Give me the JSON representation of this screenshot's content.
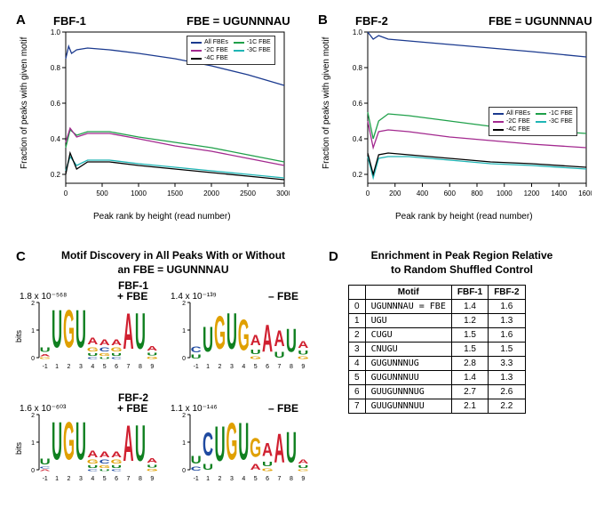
{
  "fbe_string": "FBE = UGUNNNAU",
  "panelA": {
    "label": "A",
    "title": "FBF-1",
    "x_label": "Peak rank by height (read number)",
    "y_label": "Fraction of peaks with given motif",
    "x_ticks": [
      0,
      500,
      1000,
      1500,
      2000,
      2500,
      3000
    ],
    "y_ticks": [
      "0.2",
      "0.4",
      "0.6",
      "0.8",
      "1.0"
    ],
    "xlim": [
      0,
      3000
    ],
    "ylim": [
      0.15,
      1.0
    ],
    "legend": [
      {
        "label": "All FBEs",
        "color": "#1b3a8f"
      },
      {
        "label": "-1C FBE",
        "color": "#1fa04a"
      },
      {
        "label": "-2C FBE",
        "color": "#a3298f"
      },
      {
        "label": "-3C FBE",
        "color": "#1fb5b5"
      },
      {
        "label": "-4C FBE",
        "color": "#000000"
      }
    ],
    "series": {
      "all": [
        [
          0,
          0.85
        ],
        [
          40,
          0.92
        ],
        [
          80,
          0.88
        ],
        [
          150,
          0.9
        ],
        [
          300,
          0.91
        ],
        [
          600,
          0.9
        ],
        [
          1000,
          0.88
        ],
        [
          1500,
          0.85
        ],
        [
          2000,
          0.81
        ],
        [
          2500,
          0.76
        ],
        [
          3000,
          0.7
        ]
      ],
      "m1c": [
        [
          0,
          0.35
        ],
        [
          60,
          0.45
        ],
        [
          150,
          0.42
        ],
        [
          300,
          0.44
        ],
        [
          600,
          0.44
        ],
        [
          1000,
          0.41
        ],
        [
          1500,
          0.38
        ],
        [
          2000,
          0.35
        ],
        [
          2500,
          0.31
        ],
        [
          3000,
          0.27
        ]
      ],
      "m2c": [
        [
          0,
          0.38
        ],
        [
          60,
          0.46
        ],
        [
          150,
          0.41
        ],
        [
          300,
          0.43
        ],
        [
          600,
          0.43
        ],
        [
          1000,
          0.4
        ],
        [
          1500,
          0.36
        ],
        [
          2000,
          0.33
        ],
        [
          2500,
          0.29
        ],
        [
          3000,
          0.25
        ]
      ],
      "m3c": [
        [
          0,
          0.22
        ],
        [
          60,
          0.3
        ],
        [
          150,
          0.25
        ],
        [
          300,
          0.28
        ],
        [
          600,
          0.28
        ],
        [
          1000,
          0.26
        ],
        [
          1500,
          0.24
        ],
        [
          2000,
          0.22
        ],
        [
          2500,
          0.2
        ],
        [
          3000,
          0.18
        ]
      ],
      "m4c": [
        [
          0,
          0.2
        ],
        [
          60,
          0.32
        ],
        [
          150,
          0.23
        ],
        [
          300,
          0.27
        ],
        [
          600,
          0.27
        ],
        [
          1000,
          0.25
        ],
        [
          1500,
          0.23
        ],
        [
          2000,
          0.21
        ],
        [
          2500,
          0.19
        ],
        [
          3000,
          0.17
        ]
      ]
    }
  },
  "panelB": {
    "label": "B",
    "title": "FBF-2",
    "x_label": "Peak rank by height (read number)",
    "y_label": "Fraction of peaks with given motif",
    "x_ticks": [
      0,
      200,
      400,
      600,
      800,
      1000,
      1200,
      1400,
      1600
    ],
    "y_ticks": [
      "0.2",
      "0.4",
      "0.6",
      "0.8",
      "1.0"
    ],
    "xlim": [
      0,
      1600
    ],
    "ylim": [
      0.15,
      1.0
    ],
    "legend": [
      {
        "label": "All FBEs",
        "color": "#1b3a8f"
      },
      {
        "label": "-1C FBE",
        "color": "#1fa04a"
      },
      {
        "label": "-2C FBE",
        "color": "#a3298f"
      },
      {
        "label": "-3C FBE",
        "color": "#1fb5b5"
      },
      {
        "label": "-4C FBE",
        "color": "#000000"
      }
    ],
    "series": {
      "all": [
        [
          0,
          1.0
        ],
        [
          40,
          0.96
        ],
        [
          80,
          0.98
        ],
        [
          150,
          0.96
        ],
        [
          300,
          0.95
        ],
        [
          600,
          0.93
        ],
        [
          900,
          0.91
        ],
        [
          1200,
          0.89
        ],
        [
          1600,
          0.86
        ]
      ],
      "m1c": [
        [
          0,
          0.55
        ],
        [
          40,
          0.4
        ],
        [
          80,
          0.5
        ],
        [
          150,
          0.54
        ],
        [
          300,
          0.53
        ],
        [
          600,
          0.5
        ],
        [
          900,
          0.47
        ],
        [
          1200,
          0.45
        ],
        [
          1600,
          0.43
        ]
      ],
      "m2c": [
        [
          0,
          0.5
        ],
        [
          40,
          0.35
        ],
        [
          80,
          0.44
        ],
        [
          150,
          0.45
        ],
        [
          300,
          0.44
        ],
        [
          600,
          0.41
        ],
        [
          900,
          0.39
        ],
        [
          1200,
          0.37
        ],
        [
          1600,
          0.35
        ]
      ],
      "m3c": [
        [
          0,
          0.3
        ],
        [
          40,
          0.18
        ],
        [
          80,
          0.29
        ],
        [
          150,
          0.3
        ],
        [
          300,
          0.3
        ],
        [
          600,
          0.28
        ],
        [
          900,
          0.26
        ],
        [
          1200,
          0.25
        ],
        [
          1600,
          0.23
        ]
      ],
      "m4c": [
        [
          0,
          0.32
        ],
        [
          40,
          0.2
        ],
        [
          80,
          0.31
        ],
        [
          150,
          0.32
        ],
        [
          300,
          0.31
        ],
        [
          600,
          0.29
        ],
        [
          900,
          0.27
        ],
        [
          1200,
          0.26
        ],
        [
          1600,
          0.24
        ]
      ]
    }
  },
  "panelC": {
    "label": "C",
    "title_line1": "Motif Discovery in All Peaks With or Without",
    "title_line2": "an FBE = UGUNNNAU",
    "sub_fbf1": "FBF-1",
    "sub_fbf2": "FBF-2",
    "bits_label": "bits",
    "y_ticks": [
      "0",
      "1",
      "2"
    ],
    "colors": {
      "A": "#d02030",
      "C": "#1f4aa0",
      "G": "#e0a000",
      "U": "#108020"
    },
    "logos": {
      "fbf1_plus": {
        "evalue": "1.8 x 10⁻⁵⁶⁸",
        "tag": "+ FBE",
        "cols": [
          [
            [
              "U",
              0.25
            ],
            [
              "A",
              0.12
            ],
            [
              "G",
              0.1
            ]
          ],
          [
            [
              "U",
              1.95
            ]
          ],
          [
            [
              "G",
              1.95
            ]
          ],
          [
            [
              "U",
              1.95
            ]
          ],
          [
            [
              "A",
              0.35
            ],
            [
              "G",
              0.22
            ],
            [
              "U",
              0.15
            ],
            [
              "C",
              0.1
            ]
          ],
          [
            [
              "A",
              0.3
            ],
            [
              "C",
              0.2
            ],
            [
              "G",
              0.15
            ],
            [
              "U",
              0.1
            ]
          ],
          [
            [
              "A",
              0.3
            ],
            [
              "G",
              0.2
            ],
            [
              "U",
              0.15
            ],
            [
              "C",
              0.1
            ]
          ],
          [
            [
              "A",
              1.85
            ]
          ],
          [
            [
              "U",
              1.85
            ]
          ],
          [
            [
              "A",
              0.25
            ],
            [
              "U",
              0.15
            ],
            [
              "G",
              0.12
            ]
          ]
        ]
      },
      "fbf1_minus": {
        "evalue": "1.4 x 10⁻¹³⁹",
        "tag": "– FBE",
        "cols": [
          [
            [
              "C",
              0.3
            ],
            [
              "U",
              0.2
            ]
          ],
          [
            [
              "U",
              1.3
            ]
          ],
          [
            [
              "G",
              1.7
            ]
          ],
          [
            [
              "U",
              1.85
            ]
          ],
          [
            [
              "G",
              1.6
            ]
          ],
          [
            [
              "A",
              0.55
            ],
            [
              "U",
              0.25
            ],
            [
              "G",
              0.15
            ]
          ],
          [
            [
              "A",
              1.4
            ]
          ],
          [
            [
              "A",
              0.8
            ],
            [
              "U",
              0.3
            ]
          ],
          [
            [
              "U",
              1.2
            ]
          ],
          [
            [
              "A",
              0.35
            ],
            [
              "U",
              0.2
            ],
            [
              "G",
              0.15
            ]
          ]
        ]
      },
      "fbf2_plus": {
        "evalue": "1.6 x 10⁻⁶⁰³",
        "tag": "+ FBE",
        "cols": [
          [
            [
              "U",
              0.3
            ],
            [
              "A",
              0.1
            ],
            [
              "C",
              0.1
            ]
          ],
          [
            [
              "U",
              1.95
            ]
          ],
          [
            [
              "G",
              1.95
            ]
          ],
          [
            [
              "U",
              1.95
            ]
          ],
          [
            [
              "A",
              0.35
            ],
            [
              "G",
              0.2
            ],
            [
              "U",
              0.15
            ],
            [
              "C",
              0.1
            ]
          ],
          [
            [
              "A",
              0.3
            ],
            [
              "C",
              0.2
            ],
            [
              "G",
              0.15
            ],
            [
              "U",
              0.1
            ]
          ],
          [
            [
              "A",
              0.3
            ],
            [
              "G",
              0.2
            ],
            [
              "U",
              0.15
            ],
            [
              "C",
              0.1
            ]
          ],
          [
            [
              "A",
              1.85
            ]
          ],
          [
            [
              "U",
              1.85
            ]
          ],
          [
            [
              "A",
              0.25
            ],
            [
              "U",
              0.15
            ],
            [
              "G",
              0.12
            ]
          ]
        ]
      },
      "fbf2_minus": {
        "evalue": "1.1 x 10⁻¹⁴⁶",
        "tag": "– FBE",
        "cols": [
          [
            [
              "U",
              0.4
            ],
            [
              "C",
              0.2
            ]
          ],
          [
            [
              "C",
              1.2
            ],
            [
              "U",
              0.3
            ]
          ],
          [
            [
              "U",
              1.8
            ]
          ],
          [
            [
              "G",
              1.9
            ]
          ],
          [
            [
              "U",
              1.9
            ]
          ],
          [
            [
              "G",
              1.0
            ],
            [
              "A",
              0.3
            ]
          ],
          [
            [
              "A",
              0.7
            ],
            [
              "U",
              0.25
            ],
            [
              "G",
              0.15
            ]
          ],
          [
            [
              "A",
              1.5
            ]
          ],
          [
            [
              "U",
              1.6
            ]
          ],
          [
            [
              "A",
              0.2
            ],
            [
              "U",
              0.15
            ],
            [
              "G",
              0.1
            ]
          ]
        ]
      }
    }
  },
  "panelD": {
    "label": "D",
    "title_line1": "Enrichment in Peak Region Relative",
    "title_line2": "to Random Shuffled Control",
    "columns": [
      "Motif",
      "FBF-1",
      "FBF-2"
    ],
    "rows": [
      [
        "0",
        "UGUNNNAU = FBE",
        "1.4",
        "1.6"
      ],
      [
        "1",
        "UGU",
        "1.2",
        "1.3"
      ],
      [
        "2",
        "CUGU",
        "1.5",
        "1.6"
      ],
      [
        "3",
        "CNUGU",
        "1.5",
        "1.5"
      ],
      [
        "4",
        "GUGUNNNUG",
        "2.8",
        "3.3"
      ],
      [
        "5",
        "GUGUNNNUU",
        "1.4",
        "1.3"
      ],
      [
        "6",
        "GUUGUNNNUG",
        "2.7",
        "2.6"
      ],
      [
        "7",
        "GUUGUNNNUU",
        "2.1",
        "2.2"
      ]
    ]
  }
}
